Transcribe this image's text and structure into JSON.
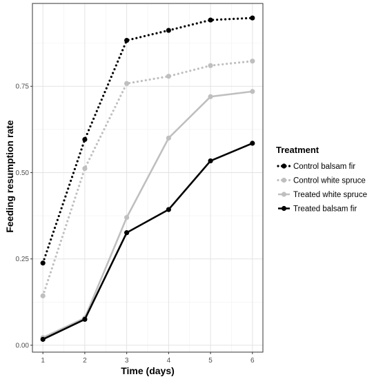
{
  "chart_data": {
    "type": "line",
    "title": "",
    "xlabel": "Time (days)",
    "ylabel": "Feeding resumption rate",
    "x": [
      1,
      2,
      3,
      4,
      5,
      6
    ],
    "x_ticks": [
      "1",
      "2",
      "3",
      "4",
      "5",
      "6"
    ],
    "y_ticks": [
      "0.00",
      "0.25",
      "0.50",
      "0.75"
    ],
    "ylim": [
      -0.02,
      0.99
    ],
    "xlim": [
      0.75,
      6.25
    ],
    "grid": true,
    "legend": {
      "title": "Treatment",
      "position": "right"
    },
    "series": [
      {
        "name": "Control balsam fir",
        "values": [
          0.238,
          0.596,
          0.883,
          0.912,
          0.942,
          0.948
        ],
        "color": "#000000",
        "linestyle": "dotted"
      },
      {
        "name": "Control white spruce",
        "values": [
          0.143,
          0.512,
          0.758,
          0.779,
          0.81,
          0.823
        ],
        "color": "#bfbfbf",
        "linestyle": "dotted"
      },
      {
        "name": "Treated white spruce",
        "values": [
          0.022,
          0.079,
          0.37,
          0.6,
          0.72,
          0.735
        ],
        "color": "#bfbfbf",
        "linestyle": "solid"
      },
      {
        "name": "Treated balsam fir",
        "values": [
          0.017,
          0.075,
          0.326,
          0.393,
          0.534,
          0.585
        ],
        "color": "#000000",
        "linestyle": "solid"
      }
    ]
  }
}
